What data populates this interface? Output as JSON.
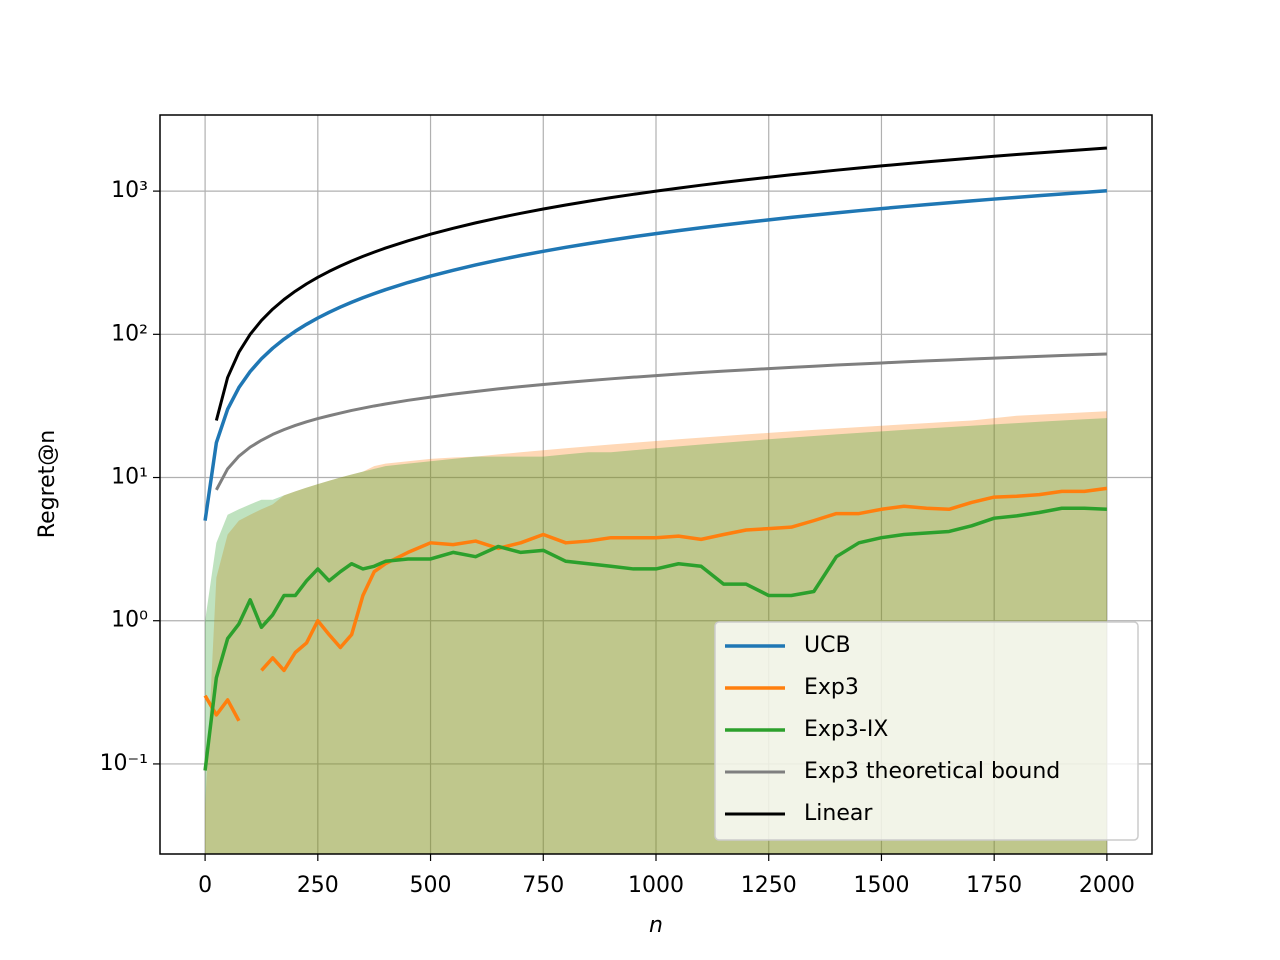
{
  "chart_data": {
    "type": "line",
    "xlabel": "n",
    "ylabel": "Regret@n",
    "x": [
      0,
      25,
      50,
      75,
      100,
      125,
      150,
      175,
      200,
      225,
      250,
      275,
      300,
      325,
      350,
      375,
      400,
      450,
      500,
      550,
      600,
      650,
      700,
      750,
      800,
      850,
      900,
      950,
      1000,
      1050,
      1100,
      1150,
      1200,
      1250,
      1300,
      1350,
      1400,
      1450,
      1500,
      1550,
      1600,
      1650,
      1700,
      1750,
      1800,
      1850,
      1900,
      1950,
      2000
    ],
    "series": [
      {
        "name": "UCB",
        "color": "#1f77b4",
        "width": 3.5,
        "values": [
          5,
          17.5,
          30,
          42.5,
          55,
          67.5,
          80,
          92.5,
          105,
          117.5,
          130,
          142.5,
          155,
          167.5,
          180,
          192.5,
          205,
          230,
          255,
          280,
          305,
          330,
          355,
          380,
          405,
          430,
          455,
          480,
          505,
          530,
          555,
          580,
          605,
          630,
          655,
          680,
          705,
          730,
          755,
          780,
          805,
          830,
          855,
          880,
          905,
          930,
          955,
          980,
          1005
        ]
      },
      {
        "name": "Exp3",
        "color": "#ff7f0e",
        "width": 3.5,
        "values": [
          0.3,
          0.22,
          0.28,
          0.2,
          null,
          0.45,
          0.55,
          0.45,
          0.6,
          0.7,
          1.0,
          0.8,
          0.65,
          0.8,
          1.5,
          2.2,
          2.5,
          3.0,
          3.5,
          3.4,
          3.6,
          3.2,
          3.5,
          4.0,
          3.5,
          3.6,
          3.8,
          3.8,
          3.8,
          3.9,
          3.7,
          4.0,
          4.3,
          4.4,
          4.5,
          5.0,
          5.6,
          5.6,
          6.0,
          6.3,
          6.1,
          6.0,
          6.7,
          7.3,
          7.4,
          7.6,
          8.0,
          8.0,
          8.4
        ],
        "upper": [
          0.05,
          2,
          4,
          5,
          5.5,
          6,
          6.5,
          7.5,
          8,
          8.5,
          9,
          9.5,
          10,
          10.5,
          11,
          12,
          12.5,
          13,
          13.5,
          13.8,
          14,
          14.5,
          15,
          15.5,
          16,
          16.5,
          17,
          17.5,
          18,
          18.5,
          19,
          19.5,
          20,
          20.5,
          21,
          21.5,
          22,
          22.5,
          23,
          23.5,
          24,
          24.5,
          25,
          26,
          27,
          27.5,
          28,
          28.5,
          29
        ]
      },
      {
        "name": "Exp3-IX",
        "color": "#2ca02c",
        "width": 3.5,
        "values": [
          0.09,
          0.4,
          0.75,
          0.95,
          1.4,
          0.9,
          1.1,
          1.5,
          1.5,
          1.9,
          2.3,
          1.9,
          2.2,
          2.5,
          2.3,
          2.4,
          2.6,
          2.7,
          2.7,
          3.0,
          2.8,
          3.3,
          3.0,
          3.1,
          2.6,
          2.5,
          2.4,
          2.3,
          2.3,
          2.5,
          2.4,
          1.8,
          1.8,
          1.5,
          1.5,
          1.6,
          2.8,
          3.5,
          3.8,
          4.0,
          4.1,
          4.2,
          4.6,
          5.2,
          5.4,
          5.7,
          6.1,
          6.1,
          6.0
        ],
        "upper": [
          1,
          3.5,
          5.5,
          6,
          6.5,
          7,
          7,
          7.5,
          8,
          8.5,
          9,
          9.5,
          10,
          10.5,
          11,
          11.5,
          12,
          12.5,
          13,
          13.5,
          14,
          14,
          14,
          14,
          14.5,
          15,
          15,
          15.5,
          16,
          16.5,
          17,
          17.5,
          18,
          18.5,
          19,
          19.5,
          20,
          20.5,
          21,
          21.5,
          22,
          22.5,
          23,
          23.5,
          24,
          24.5,
          25,
          25.5,
          26
        ]
      },
      {
        "name": "Exp3 theoretical bound",
        "color": "#7f7f7f",
        "width": 3,
        "values": [
          null,
          8.2,
          11.5,
          14.1,
          16.3,
          18.2,
          20.0,
          21.6,
          23.1,
          24.5,
          25.8,
          27.0,
          28.2,
          29.4,
          30.5,
          31.6,
          32.6,
          34.6,
          36.4,
          38.2,
          39.9,
          41.6,
          43.1,
          44.6,
          46.1,
          47.5,
          48.9,
          50.2,
          51.5,
          52.8,
          54.1,
          55.3,
          56.5,
          57.6,
          58.8,
          59.9,
          61.0,
          62.1,
          63.1,
          64.2,
          65.2,
          66.2,
          67.2,
          68.2,
          69.2,
          70.1,
          71.1,
          72.0,
          72.9
        ]
      },
      {
        "name": "Linear",
        "color": "#000000",
        "width": 3,
        "values": [
          null,
          25,
          50,
          75,
          100,
          125,
          150,
          175,
          200,
          225,
          250,
          275,
          300,
          325,
          350,
          375,
          400,
          450,
          500,
          550,
          600,
          650,
          700,
          750,
          800,
          850,
          900,
          950,
          1000,
          1050,
          1100,
          1150,
          1200,
          1250,
          1300,
          1350,
          1400,
          1450,
          1500,
          1550,
          1600,
          1650,
          1700,
          1750,
          1800,
          1850,
          1900,
          1950,
          2000
        ]
      }
    ],
    "xlim": [
      -100,
      2100
    ],
    "xticks": [
      0,
      250,
      500,
      750,
      1000,
      1250,
      1500,
      1750,
      2000
    ],
    "ylim": [
      0.0235,
      3400
    ],
    "yscale": "log",
    "yticks": [
      {
        "value": 0.1,
        "label": "10⁻¹"
      },
      {
        "value": 1,
        "label": "10⁰"
      },
      {
        "value": 10,
        "label": "10¹"
      },
      {
        "value": 100,
        "label": "10²"
      },
      {
        "value": 1000,
        "label": "10³"
      }
    ],
    "grid": true,
    "legend": "lower right"
  }
}
